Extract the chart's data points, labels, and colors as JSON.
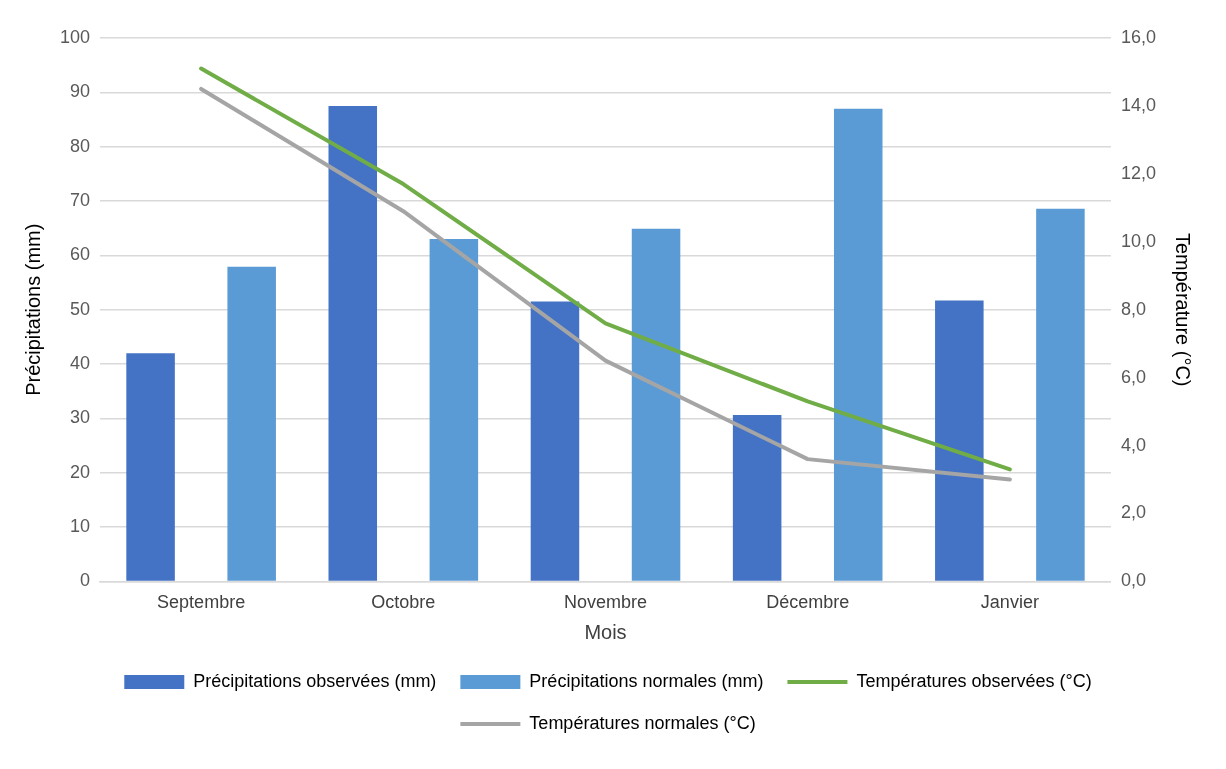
{
  "chart_data": {
    "type": "bar",
    "xlabel": "Mois",
    "ylabel": "Précipitations (mm)",
    "y2label": "Température (°C)",
    "categories": [
      "Septembre",
      "Octobre",
      "Novembre",
      "Décembre",
      "Janvier"
    ],
    "series": [
      {
        "name": "Précipitations observées (mm)",
        "color": "#4472c4",
        "values": [
          42,
          87.5,
          51.5,
          30.6,
          51.7
        ]
      },
      {
        "name": "Précipitations normales (mm)",
        "color": "#5b9bd5",
        "values": [
          57.9,
          63,
          64.9,
          87,
          68.6
        ]
      },
      {
        "name": "Températures observées (°C)",
        "type": "line",
        "axis": "y2",
        "color": "#70ad47",
        "values": [
          15.1,
          11.7,
          7.6,
          5.3,
          3.3
        ]
      },
      {
        "name": "Températures normales (°C)",
        "type": "line",
        "axis": "y2",
        "color": "#a5a5a5",
        "values": [
          14.5,
          10.9,
          6.5,
          3.6,
          3.0
        ]
      }
    ],
    "ylim": [
      0,
      100
    ],
    "yticks": [
      0,
      10,
      20,
      30,
      40,
      50,
      60,
      70,
      80,
      90,
      100
    ],
    "y2lim": [
      0,
      16
    ],
    "y2ticks": [
      {
        "value": 0,
        "label": "0,0"
      },
      {
        "value": 2,
        "label": "2,0"
      },
      {
        "value": 4,
        "label": "4,0"
      },
      {
        "value": 6,
        "label": "6,0"
      },
      {
        "value": 8,
        "label": "8,0"
      },
      {
        "value": 10,
        "label": "10,0"
      },
      {
        "value": 12,
        "label": "12,0"
      },
      {
        "value": 14,
        "label": "14,0"
      },
      {
        "value": 16,
        "label": "16,0"
      }
    ],
    "grid": "y",
    "legend": "bottom",
    "marker": "none",
    "line_style": "solid"
  }
}
